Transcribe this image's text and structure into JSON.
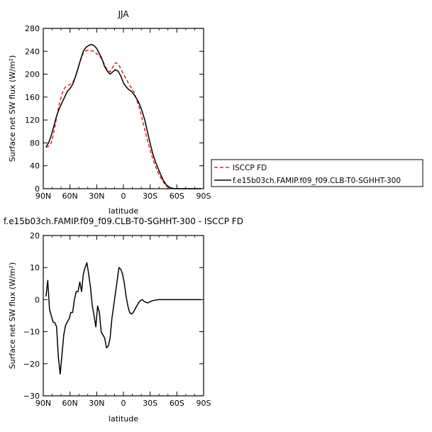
{
  "chart_data": [
    {
      "type": "line",
      "title": "JJA",
      "xlabel": "latitude",
      "ylabel": "Surface net SW flux (W/m²)",
      "xlim": [
        90,
        -90
      ],
      "ylim": [
        0,
        280
      ],
      "xticks": [
        90,
        60,
        30,
        0,
        -30,
        -60,
        -90
      ],
      "xtick_labels": [
        "90N",
        "60N",
        "30N",
        "0",
        "30S",
        "60S",
        "90S"
      ],
      "yticks": [
        0,
        40,
        80,
        120,
        160,
        200,
        240,
        280
      ],
      "ytick_labels": [
        "0",
        "40",
        "80",
        "120",
        "160",
        "200",
        "240",
        "280"
      ],
      "legend_position": "right",
      "series": [
        {
          "name": "ISCCP FD",
          "color": "#e8231f",
          "dash": "dashed",
          "x": [
            87,
            84,
            81,
            78,
            75,
            72,
            69,
            66,
            63,
            60,
            57,
            54,
            51,
            48,
            45,
            42,
            39,
            36,
            33,
            30,
            27,
            24,
            21,
            18,
            15,
            12,
            9,
            6,
            3,
            0,
            -3,
            -6,
            -9,
            -12,
            -15,
            -18,
            -21,
            -24,
            -27,
            -30,
            -33,
            -36,
            -39,
            -42,
            -45,
            -48,
            -51,
            -54,
            -57,
            -60,
            -63,
            -66,
            -69,
            -72,
            -75,
            -78,
            -81,
            -84,
            -87
          ],
          "y": [
            72,
            74,
            80,
            100,
            125,
            148,
            165,
            176,
            180,
            182,
            185,
            195,
            210,
            225,
            238,
            241,
            242,
            241,
            240,
            236,
            232,
            226,
            216,
            207,
            204,
            212,
            220,
            218,
            210,
            200,
            192,
            183,
            176,
            168,
            155,
            140,
            122,
            103,
            84,
            67,
            52,
            39,
            28,
            19,
            11,
            5,
            1.5,
            0.5,
            0.1,
            0,
            0,
            0,
            0,
            0,
            0,
            0,
            0,
            0,
            0
          ]
        },
        {
          "name": "f.e15b03ch.FAMIP.f09_f09.CLB-T0-SGHHT-300",
          "color": "#000000",
          "dash": "solid",
          "x": [
            87,
            84,
            81,
            78,
            75,
            72,
            69,
            66,
            63,
            60,
            57,
            54,
            51,
            48,
            45,
            42,
            39,
            36,
            33,
            30,
            27,
            24,
            21,
            18,
            15,
            12,
            9,
            6,
            3,
            0,
            -3,
            -6,
            -9,
            -12,
            -15,
            -18,
            -21,
            -24,
            -27,
            -30,
            -33,
            -36,
            -39,
            -42,
            -45,
            -48,
            -51,
            -54,
            -57,
            -60,
            -63,
            -66,
            -69,
            -72,
            -75,
            -78,
            -81,
            -84,
            -87
          ],
          "y": [
            73,
            80,
            93,
            110,
            127,
            140,
            150,
            160,
            170,
            175,
            182,
            195,
            210,
            226,
            240,
            247,
            250,
            252,
            250,
            245,
            236,
            226,
            213,
            205,
            200,
            204,
            208,
            205,
            197,
            185,
            178,
            173,
            170,
            164,
            157,
            148,
            135,
            120,
            99,
            79,
            61,
            47,
            35,
            24,
            14,
            7,
            3,
            1,
            0.3,
            0.1,
            0,
            0,
            0,
            0,
            0,
            0,
            0,
            0,
            0
          ]
        }
      ]
    },
    {
      "type": "line",
      "title": "f.e15b03ch.FAMIP.f09_f09.CLB-T0-SGHHT-300 - ISCCP FD",
      "xlabel": "latitude",
      "ylabel": "Surface net SW flux (W/m²)",
      "xlim": [
        90,
        -90
      ],
      "ylim": [
        -30,
        20
      ],
      "xticks": [
        90,
        60,
        30,
        0,
        -30,
        -60,
        -90
      ],
      "xtick_labels": [
        "90N",
        "60N",
        "30N",
        "0",
        "30S",
        "60S",
        "90S"
      ],
      "yticks": [
        -30,
        -20,
        -10,
        0,
        10,
        20
      ],
      "ytick_labels": [
        "−30",
        "−20",
        "−10",
        "0",
        "10",
        "20"
      ],
      "series": [
        {
          "name": "",
          "color": "#000000",
          "dash": "solid",
          "x": [
            87,
            85,
            83,
            81,
            79,
            77,
            75,
            73,
            71,
            69,
            67,
            65,
            63,
            61,
            59,
            57,
            55,
            53,
            51,
            49,
            47,
            45,
            43,
            41,
            39,
            37,
            35,
            33,
            31,
            29,
            27,
            25,
            23,
            21,
            19,
            17,
            15,
            13,
            11,
            9,
            7,
            5,
            3,
            1,
            -1,
            -3,
            -5,
            -7,
            -9,
            -11,
            -13,
            -15,
            -17,
            -19,
            -21,
            -23,
            -25,
            -27,
            -29,
            -31,
            -33,
            -35,
            -37,
            -39,
            -41,
            -43,
            -45,
            -47,
            -49,
            -51,
            -53,
            -55,
            -57,
            -59,
            -61,
            -63,
            -65,
            -67,
            -69,
            -71,
            -73,
            -75,
            -77,
            -79,
            -81,
            -83,
            -85,
            -87
          ],
          "y": [
            1,
            6,
            -3,
            -5,
            -7,
            -7.2,
            -8.5,
            -18,
            -23.2,
            -17,
            -11,
            -8,
            -7,
            -6,
            -4,
            -4,
            0,
            2.5,
            2.5,
            5.5,
            2.5,
            8,
            10,
            11.5,
            8,
            4,
            -2,
            -5,
            -8.5,
            -2,
            -4,
            -10,
            -11,
            -12,
            -15,
            -14.5,
            -12,
            -6,
            -2,
            2,
            6,
            10,
            9.5,
            8,
            5,
            1,
            -2,
            -4,
            -4.5,
            -4,
            -3,
            -2,
            -1,
            -0.3,
            0,
            -0.5,
            -0.8,
            -1,
            -0.8,
            -0.5,
            -0.3,
            -0.2,
            -0.1,
            0,
            0,
            0,
            0,
            0,
            0,
            0,
            0,
            0,
            0,
            0,
            0,
            0,
            0,
            0,
            0,
            0,
            0,
            0,
            0,
            0,
            0,
            0,
            0,
            0
          ]
        }
      ]
    }
  ]
}
